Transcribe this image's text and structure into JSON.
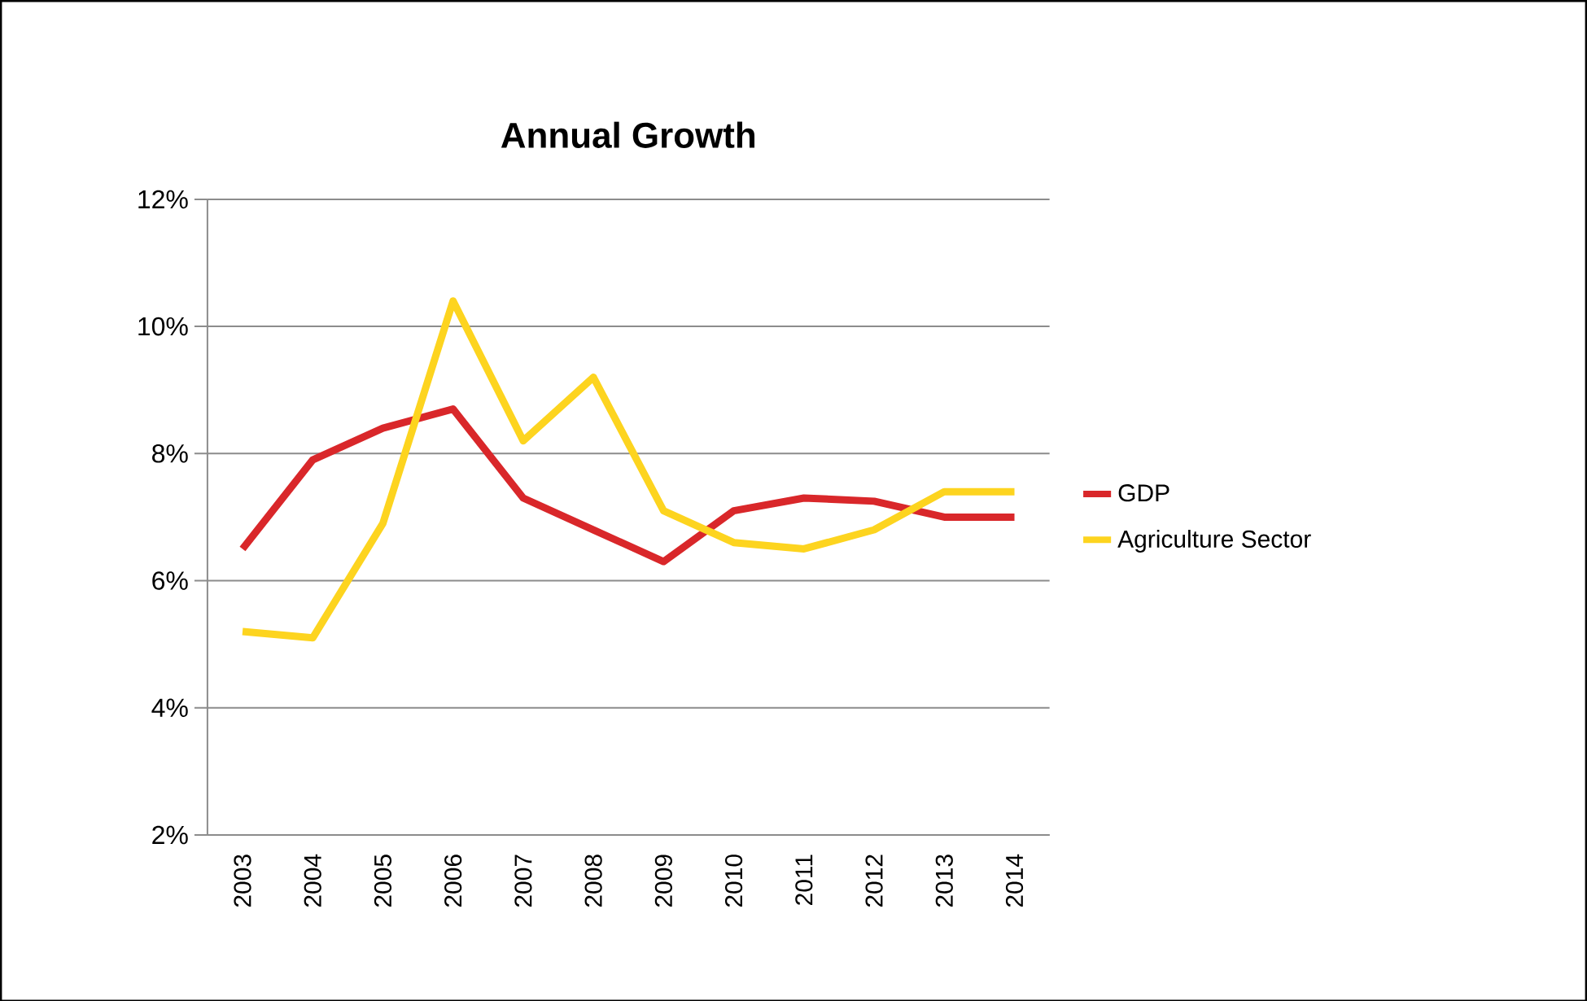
{
  "chart_data": {
    "type": "line",
    "title": "Annual Growth",
    "categories": [
      "2003",
      "2004",
      "2005",
      "2006",
      "2007",
      "2008",
      "2009",
      "2010",
      "2011",
      "2012",
      "2013",
      "2014"
    ],
    "series": [
      {
        "name": "GDP",
        "color": "#d9272a",
        "values": [
          6.5,
          7.9,
          8.4,
          8.7,
          7.3,
          6.8,
          6.3,
          7.1,
          7.3,
          7.25,
          7.0,
          7.0
        ]
      },
      {
        "name": "Agriculture Sector",
        "color": "#fdd41f",
        "values": [
          5.2,
          5.1,
          6.9,
          10.4,
          8.2,
          9.2,
          7.1,
          6.6,
          6.5,
          6.8,
          7.4,
          7.4
        ]
      }
    ],
    "ylim": [
      2,
      12
    ],
    "yticks": [
      {
        "value": 2,
        "label": "2%"
      },
      {
        "value": 4,
        "label": "4%"
      },
      {
        "value": 6,
        "label": "6%"
      },
      {
        "value": 8,
        "label": "8%"
      },
      {
        "value": 10,
        "label": "10%"
      },
      {
        "value": 12,
        "label": "12%"
      }
    ],
    "grid": "y",
    "legend": "right",
    "marker": "none",
    "line_style": "solid"
  }
}
